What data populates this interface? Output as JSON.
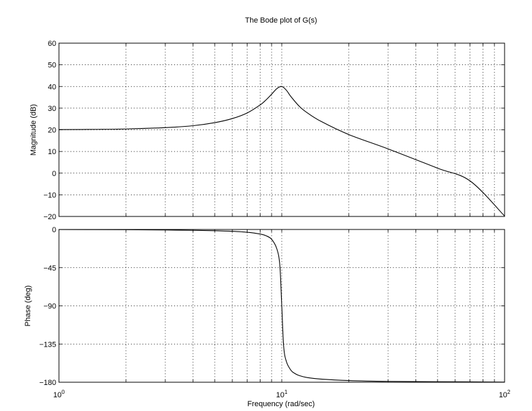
{
  "chart_data": {
    "type": "line",
    "title": "The Bode plot of G(s)",
    "xlabel": "Frequency  (rad/sec)",
    "xscale": "log",
    "xlim": [
      1,
      100
    ],
    "x_tick_labels": [
      {
        "value": 1,
        "base": "10",
        "exp": "0"
      },
      {
        "value": 10,
        "base": "10",
        "exp": "1"
      },
      {
        "value": 100,
        "base": "10",
        "exp": "2"
      }
    ],
    "grid": true,
    "grid_style": "dotted",
    "line_color": "#000000",
    "subplots": [
      {
        "name": "magnitude",
        "ylabel": "Magnitude (dB)",
        "ylim": [
          -20,
          60
        ],
        "yticks": [
          60,
          50,
          40,
          30,
          20,
          10,
          0,
          -10,
          -20
        ],
        "ytick_labels": [
          "60",
          "50",
          "40",
          "30",
          "20",
          "10",
          "0",
          "−10",
          "−20"
        ],
        "series": [
          {
            "x": [
              1,
              1.5,
              2,
              3,
              4,
              5,
              6,
              7,
              8,
              8.5,
              9,
              9.5,
              10,
              10.5,
              11,
              12,
              13,
              15,
              20,
              30,
              50,
              70,
              100
            ],
            "y": [
              20.1,
              20.2,
              20.4,
              21.0,
              21.9,
              23.3,
              25.2,
              27.8,
              31.5,
              33.8,
              36.4,
              39.0,
              40.0,
              38.2,
              35.3,
              30.8,
              27.9,
              23.9,
              17.8,
              11.2,
              2.3,
              -3.6,
              -19.8
            ]
          }
        ]
      },
      {
        "name": "phase",
        "ylabel": "Phase (deg)",
        "ylim": [
          -180,
          0
        ],
        "yticks": [
          0,
          -45,
          -90,
          -135,
          -180
        ],
        "ytick_labels": [
          "0",
          "−45",
          "−90",
          "−135",
          "−180"
        ],
        "series": [
          {
            "x": [
              1,
              2,
              3,
              4,
              5,
              6,
              7,
              8,
              8.5,
              9,
              9.5,
              9.8,
              10,
              10.2,
              10.5,
              11,
              11.5,
              12,
              13,
              15,
              20,
              30,
              50,
              100
            ],
            "y": [
              -0.1,
              -0.3,
              -0.6,
              -1.0,
              -1.5,
              -2.2,
              -3.3,
              -5.4,
              -7.4,
              -11.5,
              -22.7,
              -42.0,
              -90.0,
              -138.0,
              -156.0,
              -166.0,
              -170.0,
              -172.2,
              -174.5,
              -176.3,
              -178.0,
              -179.0,
              -179.4,
              -179.8
            ]
          }
        ]
      }
    ]
  }
}
